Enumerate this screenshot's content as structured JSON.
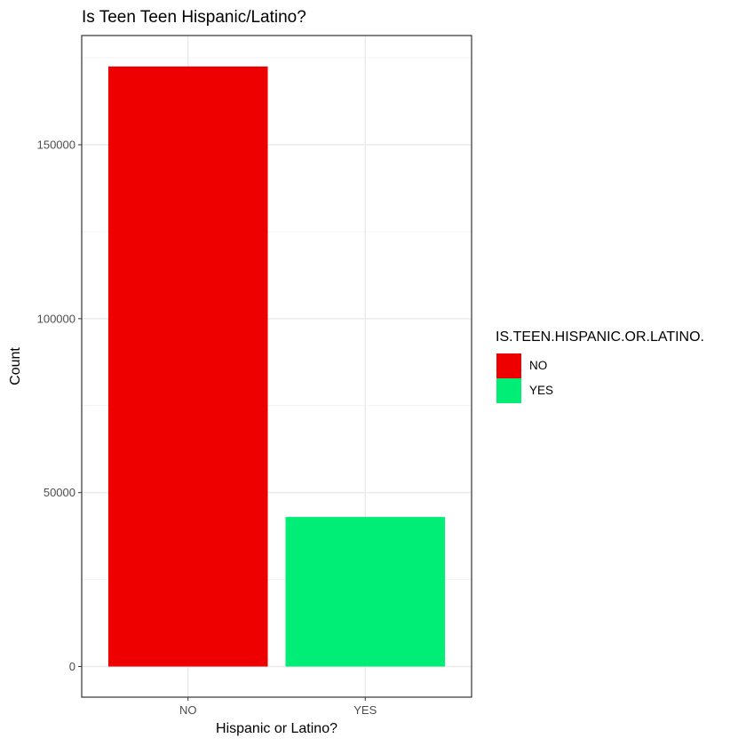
{
  "chart_data": {
    "type": "bar",
    "title": "Is Teen Teen Hispanic/Latino?",
    "xlabel": "Hispanic or Latino?",
    "ylabel": "Count",
    "categories": [
      "NO",
      "YES"
    ],
    "values": [
      172500,
      43000
    ],
    "ylim": [
      -8800,
      181400
    ],
    "yticks": [
      0,
      50000,
      100000,
      150000
    ],
    "ytick_labels": [
      "0",
      "50000",
      "100000",
      "150000"
    ],
    "grid": true,
    "legend": {
      "title": "IS.TEEN.HISPANIC.OR.LATINO.",
      "position": "right",
      "entries": [
        "NO",
        "YES"
      ]
    },
    "colors": {
      "NO": "#ee0000",
      "YES": "#00ee76"
    }
  }
}
